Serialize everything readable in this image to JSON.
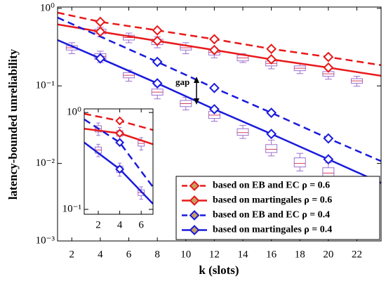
{
  "chart_data": [
    {
      "type": "line",
      "xlabel": "k (slots)",
      "ylabel": "latency-bounded unreliability",
      "xlim": [
        1,
        23.7
      ],
      "ylim": [
        0.001,
        1.04
      ],
      "log_y": true,
      "xticks": [
        2,
        4,
        6,
        8,
        10,
        12,
        14,
        16,
        18,
        20,
        22
      ],
      "yticks": [
        {
          "value": 1,
          "label": "10⁰"
        },
        {
          "value": 0.1,
          "label": "10⁻¹"
        },
        {
          "value": 0.01,
          "label": "10⁻²"
        },
        {
          "value": 0.001,
          "label": "10⁻³"
        }
      ],
      "legend": "lower right",
      "annotation": "gap",
      "series": [
        {
          "name": "based on EB and EC ρ = 0.6",
          "color": "#e8191a",
          "dashed": true,
          "x": [
            1,
            4,
            8,
            12,
            16,
            20,
            23.7
          ],
          "values": [
            0.88,
            0.67,
            0.52,
            0.4,
            0.3,
            0.236,
            0.185
          ],
          "markers": [
            false,
            true,
            true,
            true,
            true,
            true,
            false
          ]
        },
        {
          "name": "based on martingales ρ = 0.6",
          "color": "#e8191a",
          "dashed": false,
          "x": [
            1,
            4,
            8,
            12,
            16,
            20,
            23.7
          ],
          "values": [
            0.62,
            0.5,
            0.38,
            0.29,
            0.22,
            0.172,
            0.135
          ],
          "markers": [
            false,
            true,
            true,
            true,
            true,
            true,
            false
          ]
        },
        {
          "name": "based on EB and EC ρ = 0.4",
          "color": "#1a1adc",
          "dashed": true,
          "x": [
            1,
            8,
            12,
            16,
            20,
            23.7
          ],
          "values": [
            0.76,
            0.204,
            0.094,
            0.045,
            0.021,
            0.0107
          ],
          "markers": [
            false,
            true,
            true,
            true,
            true,
            false
          ]
        },
        {
          "name": "based on martingales ρ = 0.4",
          "color": "#1a1adc",
          "dashed": false,
          "x": [
            1,
            4,
            8,
            12,
            16,
            20,
            23.7
          ],
          "values": [
            0.39,
            0.226,
            0.108,
            0.05,
            0.024,
            0.0113,
            0.0056
          ],
          "markers": [
            false,
            true,
            true,
            true,
            true,
            true,
            false
          ]
        }
      ],
      "boxes": [
        {
          "color": "#9b6fd0",
          "x": [
            2,
            4,
            6,
            8,
            10,
            12,
            14,
            16,
            18,
            20,
            22
          ],
          "whislo": [
            null,
            0.43,
            0.36,
            0.31,
            0.26,
            0.23,
            0.2,
            0.166,
            0.144,
            0.122,
            0.099
          ],
          "q1": [
            null,
            0.47,
            0.39,
            0.34,
            0.29,
            0.25,
            0.21,
            0.181,
            0.157,
            0.133,
            0.108
          ],
          "median": [
            null,
            0.5,
            0.42,
            0.37,
            0.31,
            0.27,
            0.23,
            0.195,
            0.169,
            0.143,
            0.116
          ],
          "q3": [
            null,
            0.54,
            0.45,
            0.4,
            0.33,
            0.29,
            0.25,
            0.209,
            0.181,
            0.153,
            0.124
          ],
          "whishi": [
            null,
            0.57,
            0.48,
            0.43,
            0.36,
            0.31,
            0.26,
            0.224,
            0.194,
            0.164,
            0.133
          ]
        },
        {
          "color": "#9b6fd0",
          "x": [
            2,
            4,
            6,
            8,
            10,
            12,
            14,
            16,
            18,
            20,
            22
          ],
          "whislo": [
            0.26,
            0.2,
            0.115,
            0.068,
            0.049,
            0.035,
            0.021,
            0.0125,
            0.008,
            0.006,
            null
          ],
          "q1": [
            0.29,
            0.22,
            0.127,
            0.076,
            0.054,
            0.038,
            0.023,
            0.0138,
            0.009,
            0.0068,
            null
          ],
          "median": [
            0.31,
            0.24,
            0.137,
            0.083,
            0.059,
            0.042,
            0.025,
            0.0152,
            0.01,
            0.0075,
            null
          ],
          "q3": [
            0.33,
            0.26,
            0.148,
            0.091,
            0.065,
            0.047,
            0.028,
            0.0175,
            0.0118,
            0.0088,
            null
          ],
          "whishi": [
            0.36,
            0.28,
            0.16,
            0.1,
            0.071,
            0.052,
            0.031,
            0.02,
            0.0135,
            0.0102,
            null
          ]
        }
      ]
    },
    {
      "type": "line",
      "xlim": [
        0.69,
        7.1
      ],
      "ylim": [
        0.089,
        1.09
      ],
      "log_y": true,
      "xticks": [
        2,
        4,
        6
      ],
      "yticks": [
        {
          "value": 1,
          "label": "10⁰"
        },
        {
          "value": 0.1,
          "label": "10⁻¹"
        }
      ],
      "series": [
        {
          "color": "#e8191a",
          "dashed": true,
          "x": [
            0.69,
            4,
            7.1
          ],
          "values": [
            0.97,
            0.82,
            0.66
          ],
          "markers": [
            false,
            true,
            false
          ]
        },
        {
          "color": "#e8191a",
          "dashed": false,
          "x": [
            0.69,
            4,
            7.1
          ],
          "values": [
            0.68,
            0.61,
            0.47
          ],
          "markers": [
            false,
            true,
            false
          ]
        },
        {
          "color": "#1a1adc",
          "dashed": true,
          "x": [
            0.69,
            4,
            7.1
          ],
          "values": [
            0.85,
            0.49,
            0.17
          ],
          "markers": [
            false,
            true,
            false
          ]
        },
        {
          "color": "#1a1adc",
          "dashed": false,
          "x": [
            0.69,
            4,
            7.1
          ],
          "values": [
            0.49,
            0.26,
            0.114
          ],
          "markers": [
            false,
            true,
            false
          ]
        }
      ],
      "boxes": [
        {
          "color": "#9b6fd0",
          "x": [
            2,
            4,
            6
          ],
          "whislo": [
            0.58,
            0.52,
            0.41
          ],
          "q1": [
            0.63,
            0.57,
            0.45
          ],
          "median": [
            0.68,
            0.61,
            0.48
          ],
          "q3": [
            0.73,
            0.65,
            0.51
          ],
          "whishi": [
            0.78,
            0.7,
            0.55
          ]
        },
        {
          "color": "#9b6fd0",
          "x": [
            2,
            4,
            6
          ],
          "whislo": [
            0.35,
            0.22,
            0.127
          ],
          "q1": [
            0.38,
            0.24,
            0.139
          ],
          "median": [
            0.41,
            0.26,
            0.149
          ],
          "q3": [
            0.44,
            0.28,
            0.159
          ],
          "whishi": [
            0.47,
            0.3,
            0.171
          ]
        }
      ]
    }
  ]
}
